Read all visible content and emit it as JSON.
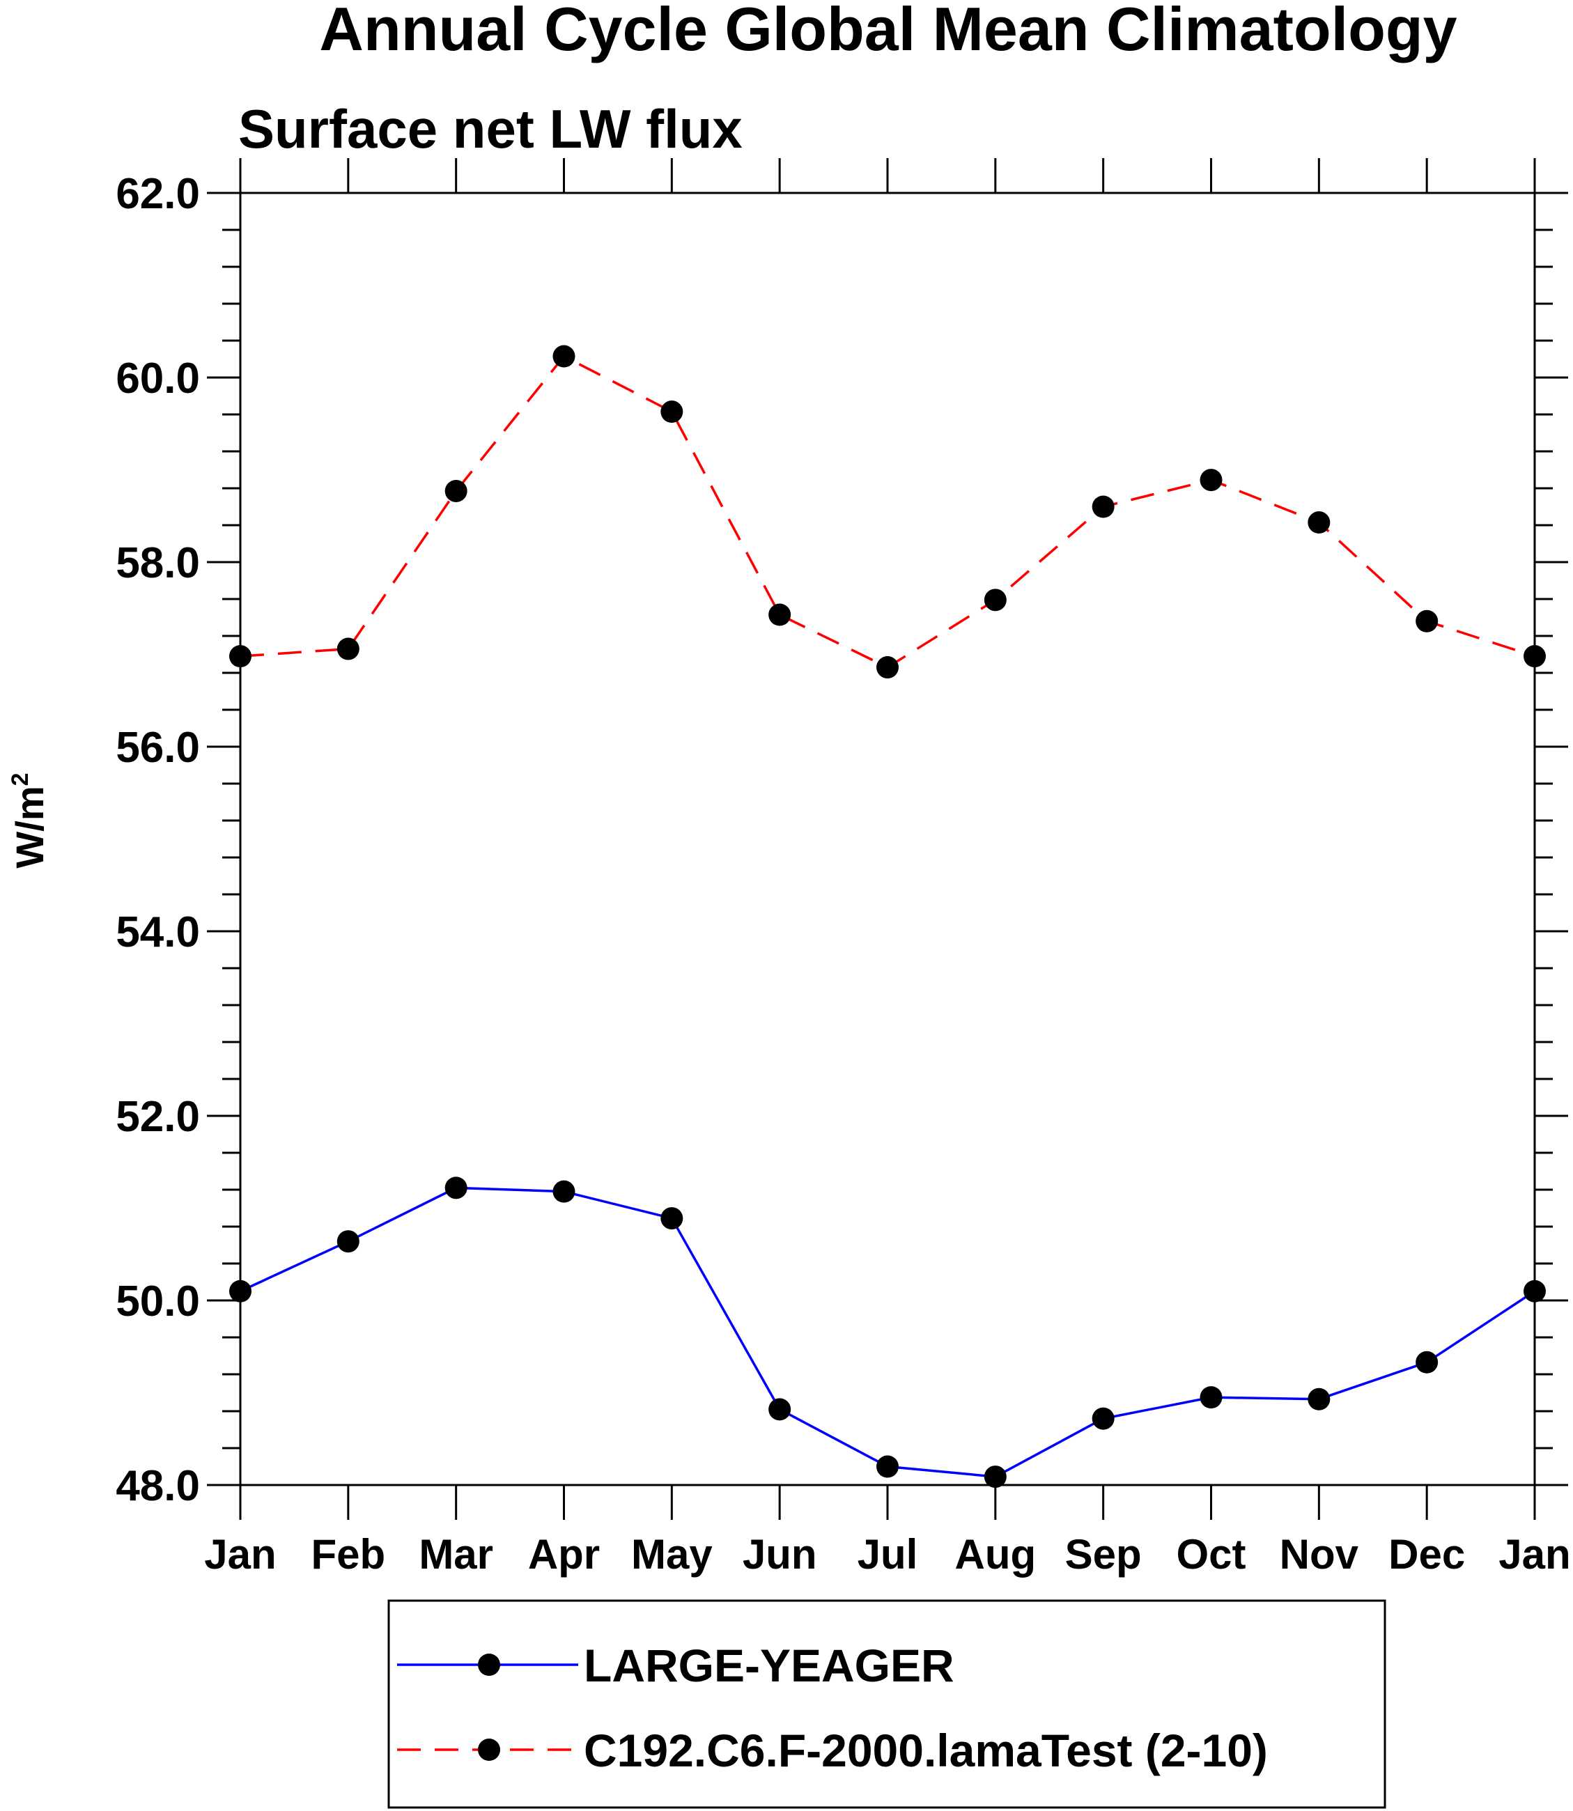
{
  "chart_data": {
    "type": "line",
    "title": "Annual Cycle Global Mean Climatology",
    "subtitle": "Surface net LW flux",
    "ylabel": "W/m",
    "ylabel_superscript": "2",
    "xlabel": "",
    "categories": [
      "Jan",
      "Feb",
      "Mar",
      "Apr",
      "May",
      "Jun",
      "Jul",
      "Aug",
      "Sep",
      "Oct",
      "Nov",
      "Dec",
      "Jan"
    ],
    "ylim": [
      48.0,
      62.0
    ],
    "yticks": [
      48.0,
      50.0,
      52.0,
      54.0,
      56.0,
      58.0,
      60.0,
      62.0
    ],
    "ytick_labels": [
      "48.0",
      "50.0",
      "52.0",
      "54.0",
      "56.0",
      "58.0",
      "60.0",
      "62.0"
    ],
    "minor_per_major": 4,
    "grid": false,
    "legend_position": "bottom",
    "series": [
      {
        "name": "LARGE-YEAGER",
        "color": "#0000ff",
        "dash": "solid",
        "marker": "circle",
        "values": [
          50.1,
          50.64,
          51.22,
          51.18,
          50.89,
          48.82,
          48.2,
          48.09,
          48.72,
          48.95,
          48.93,
          49.33,
          50.1
        ]
      },
      {
        "name": "C192.C6.F-2000.lamaTest (2-10)",
        "color": "#ff0000",
        "dash": "dashed",
        "marker": "circle",
        "values": [
          56.98,
          57.06,
          58.77,
          60.23,
          59.63,
          57.43,
          56.86,
          57.59,
          58.6,
          58.89,
          58.43,
          57.36,
          56.98
        ]
      }
    ]
  }
}
